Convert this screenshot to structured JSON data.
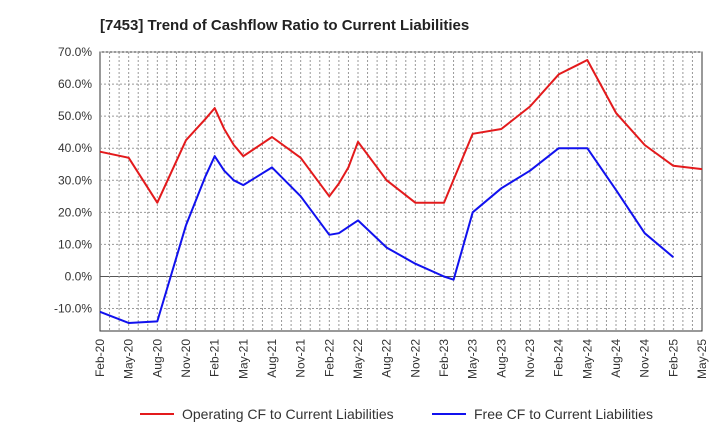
{
  "chart_data": {
    "type": "line",
    "title": "[7453]  Trend of Cashflow Ratio to Current Liabilities",
    "xlabel": "",
    "ylabel": "",
    "ylim": [
      -17,
      70
    ],
    "y_ticks": [
      "70.0%",
      "60.0%",
      "50.0%",
      "40.0%",
      "30.0%",
      "20.0%",
      "10.0%",
      "0.0%",
      "-10.0%"
    ],
    "y_tick_values": [
      70,
      60,
      50,
      40,
      30,
      20,
      10,
      0,
      -10
    ],
    "x_ticks": [
      "Feb-20",
      "May-20",
      "Aug-20",
      "Nov-20",
      "Feb-21",
      "May-21",
      "Aug-21",
      "Nov-21",
      "Feb-22",
      "May-22",
      "Aug-22",
      "Nov-22",
      "Feb-23",
      "May-23",
      "Aug-23",
      "Nov-23",
      "Feb-24",
      "May-24",
      "Aug-24",
      "Nov-24",
      "Feb-25",
      "May-25"
    ],
    "x_range": [
      0,
      63
    ],
    "grid": true,
    "legend_position": "bottom",
    "series": [
      {
        "name": "Operating CF to Current Liabilities",
        "color": "#e31a1c",
        "points": [
          [
            0,
            38.9
          ],
          [
            3,
            37.0
          ],
          [
            6,
            23.0
          ],
          [
            9,
            42.5
          ],
          [
            11,
            49.0
          ],
          [
            12,
            52.5
          ],
          [
            13,
            46.0
          ],
          [
            14,
            41.0
          ],
          [
            15,
            37.5
          ],
          [
            18,
            43.5
          ],
          [
            21,
            37.0
          ],
          [
            24,
            25.0
          ],
          [
            25,
            29.0
          ],
          [
            26,
            34.0
          ],
          [
            27,
            42.0
          ],
          [
            30,
            30.0
          ],
          [
            33,
            23.0
          ],
          [
            36,
            23.0
          ],
          [
            39,
            44.5
          ],
          [
            42,
            46.0
          ],
          [
            45,
            53.0
          ],
          [
            48,
            63.0
          ],
          [
            50,
            66.0
          ],
          [
            51,
            67.5
          ],
          [
            54,
            51.0
          ],
          [
            57,
            41.0
          ],
          [
            60,
            34.5
          ],
          [
            63,
            33.5
          ]
        ]
      },
      {
        "name": "Free CF to Current Liabilities",
        "color": "#1111ee",
        "points": [
          [
            0,
            -11.0
          ],
          [
            3,
            -14.5
          ],
          [
            6,
            -14.0
          ],
          [
            9,
            16.0
          ],
          [
            11,
            31.0
          ],
          [
            12,
            37.5
          ],
          [
            13,
            33.0
          ],
          [
            14,
            30.0
          ],
          [
            15,
            28.5
          ],
          [
            18,
            34.0
          ],
          [
            21,
            25.0
          ],
          [
            24,
            13.0
          ],
          [
            25,
            13.5
          ],
          [
            26,
            15.5
          ],
          [
            27,
            17.5
          ],
          [
            30,
            9.0
          ],
          [
            33,
            4.0
          ],
          [
            36,
            0.0
          ],
          [
            37,
            -1.0
          ],
          [
            39,
            20.0
          ],
          [
            42,
            27.5
          ],
          [
            45,
            33.0
          ],
          [
            48,
            40.0
          ],
          [
            51,
            40.0
          ],
          [
            54,
            27.0
          ],
          [
            57,
            13.5
          ],
          [
            60,
            6.0
          ]
        ]
      }
    ]
  }
}
